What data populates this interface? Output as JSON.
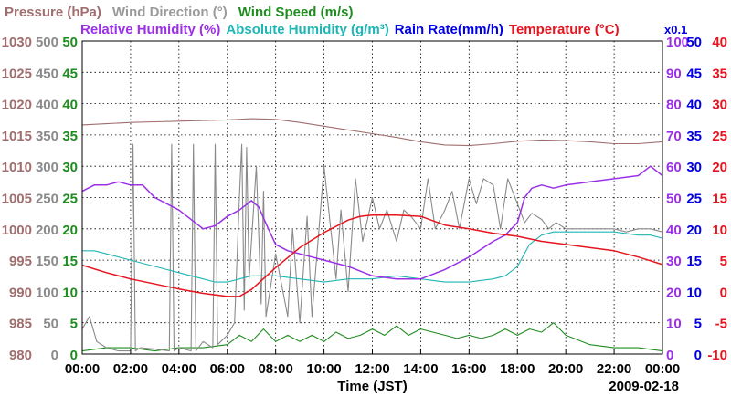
{
  "chart_data": {
    "type": "line",
    "legend": {
      "line1": [
        {
          "text": "Pressure (hPa)",
          "color": "#a06e6e"
        },
        {
          "text": "Wind Direction (°)",
          "color": "#9a9a9a"
        },
        {
          "text": "Wind Speed (m/s)",
          "color": "#1e8c1e"
        }
      ],
      "line2": [
        {
          "text": "Relative Humidity (%)",
          "color": "#9b30e6"
        },
        {
          "text": "Absolute Humidity (g/m³)",
          "color": "#1fb5b5"
        },
        {
          "text": "Rain Rate(mm/h)",
          "color": "#0000e6"
        },
        {
          "text": "Temperature (°C)",
          "color": "#e6141e"
        }
      ],
      "multiplier": "x0.1"
    },
    "xlabel": "Time (JST)",
    "date": "2009-02-18",
    "x_ticks": [
      "00:00",
      "02:00",
      "04:00",
      "06:00",
      "08:00",
      "10:00",
      "12:00",
      "14:00",
      "16:00",
      "18:00",
      "20:00",
      "22:00",
      "00:00"
    ],
    "xlim_hours": [
      0,
      24
    ],
    "grid": true,
    "axes": {
      "pressure": {
        "color": "#a06e6e",
        "ticks": [
          "1030",
          "1025",
          "1020",
          "1015",
          "1010",
          "1005",
          "1000",
          "995",
          "990",
          "985",
          "980"
        ],
        "ylim": [
          980,
          1030
        ]
      },
      "wind_direction": {
        "color": "#8a8a8a",
        "ticks": [
          "500",
          "450",
          "400",
          "350",
          "300",
          "250",
          "200",
          "150",
          "100",
          "50",
          "0"
        ],
        "ylim": [
          0,
          500
        ]
      },
      "wind_speed": {
        "color": "#1e8c1e",
        "ticks": [
          "50",
          "45",
          "40",
          "35",
          "30",
          "25",
          "20",
          "15",
          "10",
          "5",
          "0"
        ],
        "ylim": [
          0,
          50
        ]
      },
      "relative_humidity": {
        "color": "#9b30e6",
        "ticks": [
          "100",
          "90",
          "80",
          "70",
          "60",
          "50",
          "40",
          "30",
          "20",
          "10",
          "0"
        ],
        "ylim": [
          0,
          100
        ]
      },
      "rain_rate": {
        "color": "#0000e6",
        "ticks": [
          "50",
          "45",
          "40",
          "35",
          "30",
          "25",
          "20",
          "15",
          "10",
          "5",
          "0"
        ],
        "ylim": [
          0,
          50
        ]
      },
      "temperature": {
        "color": "#e6141e",
        "ticks": [
          "40",
          "35",
          "30",
          "25",
          "20",
          "15",
          "10",
          "5",
          "0",
          "-5",
          "-10"
        ],
        "ylim": [
          -10,
          40
        ]
      }
    },
    "series": [
      {
        "name": "Pressure (hPa)",
        "color": "#a06e6e",
        "axis": "pressure",
        "x": [
          0,
          1,
          2,
          3,
          4,
          5,
          6,
          7,
          8,
          9,
          10,
          11,
          12,
          13,
          14,
          15,
          16,
          17,
          18,
          19,
          20,
          21,
          22,
          23,
          24
        ],
        "y": [
          1016.6,
          1016.8,
          1017.0,
          1017.1,
          1017.2,
          1017.3,
          1017.4,
          1017.6,
          1017.5,
          1017.0,
          1016.4,
          1015.8,
          1015.2,
          1014.6,
          1013.9,
          1013.4,
          1013.3,
          1013.6,
          1014.0,
          1014.2,
          1014.1,
          1013.9,
          1013.6,
          1013.6,
          1013.9
        ]
      },
      {
        "name": "Relative Humidity (%)",
        "color": "#9b30e6",
        "axis": "relative_humidity",
        "x": [
          0,
          0.5,
          1,
          1.5,
          2,
          2.5,
          3,
          4,
          5,
          5.5,
          6,
          6.5,
          7,
          7.3,
          7.7,
          8,
          8.5,
          9,
          10,
          11,
          12,
          13,
          14,
          15,
          16,
          17,
          17.5,
          18,
          18.3,
          18.6,
          19,
          19.5,
          20,
          21,
          22,
          23,
          23.5,
          24
        ],
        "y": [
          52,
          54,
          54,
          55,
          54,
          54,
          50,
          46,
          40,
          41,
          44,
          46,
          49,
          47,
          40,
          35,
          33,
          32,
          30,
          28,
          25,
          24,
          24,
          27,
          31,
          36,
          38,
          42,
          50,
          53,
          54,
          53,
          54,
          55,
          56,
          57,
          60,
          57
        ]
      },
      {
        "name": "Absolute Humidity (g/m³)",
        "color": "#1fb5b5",
        "axis": "relative_humidity",
        "x": [
          0,
          0.5,
          1,
          2,
          3,
          4,
          5,
          5.5,
          6,
          6.5,
          7,
          8,
          9,
          10,
          11,
          12,
          13,
          14,
          15,
          16,
          17,
          17.5,
          18,
          18.5,
          19,
          19.5,
          20,
          21,
          22,
          23,
          23.5,
          24
        ],
        "y": [
          33,
          33,
          32,
          30,
          28,
          26,
          24,
          23,
          23,
          24,
          25,
          25,
          24,
          23,
          24,
          24,
          25,
          24,
          23,
          23,
          24,
          25,
          28,
          35,
          38,
          39,
          39,
          39,
          39,
          38,
          38,
          37
        ]
      },
      {
        "name": "Temperature (°C)",
        "color": "#e6141e",
        "axis": "temperature",
        "x": [
          0,
          1,
          2,
          3,
          4,
          5,
          6,
          6.5,
          7,
          8,
          9,
          10,
          11,
          11.5,
          12,
          13,
          14,
          15,
          16,
          17,
          18,
          19,
          20,
          21,
          22,
          23,
          24
        ],
        "y": [
          4.2,
          3.0,
          2.0,
          1.2,
          0.4,
          -0.3,
          -0.8,
          -0.8,
          0.3,
          3.8,
          7.0,
          9.4,
          11.4,
          12.0,
          12.2,
          12.2,
          12.0,
          10.6,
          10.0,
          9.3,
          8.8,
          8.0,
          7.5,
          7.0,
          6.5,
          5.5,
          4.3
        ]
      },
      {
        "name": "Wind Direction (°)",
        "color": "#8a8a8a",
        "axis": "wind_direction",
        "x": [
          0,
          0.3,
          0.6,
          1,
          1.5,
          2,
          2.1,
          2.2,
          2.4,
          3,
          3.6,
          3.7,
          3.8,
          4,
          4.5,
          4.6,
          4.7,
          5,
          5.4,
          5.5,
          5.6,
          6,
          6.3,
          6.5,
          6.6,
          6.7,
          6.8,
          6.9,
          7.2,
          7.4,
          7.5,
          7.6,
          8,
          8.5,
          8.7,
          9,
          9.3,
          9.5,
          10,
          10.5,
          10.7,
          11,
          11.3,
          11.6,
          12,
          12.3,
          12.6,
          13,
          13.3,
          13.6,
          14,
          14.3,
          14.6,
          15,
          15.3,
          15.6,
          16,
          16.3,
          16.6,
          17,
          17.3,
          17.6,
          18,
          18.3,
          18.6,
          19,
          19.3,
          19.6,
          20,
          20.5,
          21,
          21.5,
          22,
          22.5,
          23,
          23.5,
          24
        ],
        "y": [
          40,
          60,
          20,
          10,
          5,
          5,
          335,
          5,
          10,
          8,
          5,
          335,
          5,
          10,
          5,
          335,
          5,
          20,
          10,
          335,
          15,
          30,
          50,
          250,
          335,
          70,
          330,
          120,
          300,
          80,
          260,
          60,
          160,
          60,
          200,
          50,
          220,
          60,
          300,
          120,
          230,
          100,
          280,
          180,
          250,
          200,
          230,
          180,
          230,
          220,
          200,
          280,
          200,
          230,
          260,
          200,
          280,
          240,
          280,
          270,
          200,
          280,
          240,
          210,
          225,
          215,
          200,
          210,
          200,
          200,
          200,
          200,
          200,
          195,
          200,
          200,
          195
        ]
      },
      {
        "name": "Wind Speed (m/s)",
        "color": "#1e8c1e",
        "axis": "wind_speed",
        "x": [
          0,
          1,
          2,
          3,
          4,
          5,
          6,
          6.5,
          7,
          7.5,
          8,
          8.5,
          9,
          9.5,
          10,
          10.5,
          11,
          11.5,
          12,
          12.5,
          13,
          13.5,
          14,
          14.5,
          15,
          15.5,
          16,
          16.5,
          17,
          17.5,
          18,
          18.5,
          19,
          19.5,
          20,
          21,
          22,
          23,
          24
        ],
        "y": [
          0.5,
          1,
          1,
          0.5,
          1,
          1,
          1.5,
          3,
          2,
          4,
          2,
          3,
          2,
          3,
          2,
          3.5,
          2.5,
          3,
          4,
          3,
          4.5,
          3,
          4,
          3.5,
          3,
          2.5,
          3,
          2.5,
          3,
          4,
          3,
          4,
          3.5,
          5,
          3,
          1.5,
          1,
          1,
          0.5
        ]
      },
      {
        "name": "Rain Rate(mm/h)",
        "color": "#0000e6",
        "axis": "rain_rate",
        "x": [
          0,
          24
        ],
        "y": [
          0,
          0
        ]
      }
    ]
  }
}
